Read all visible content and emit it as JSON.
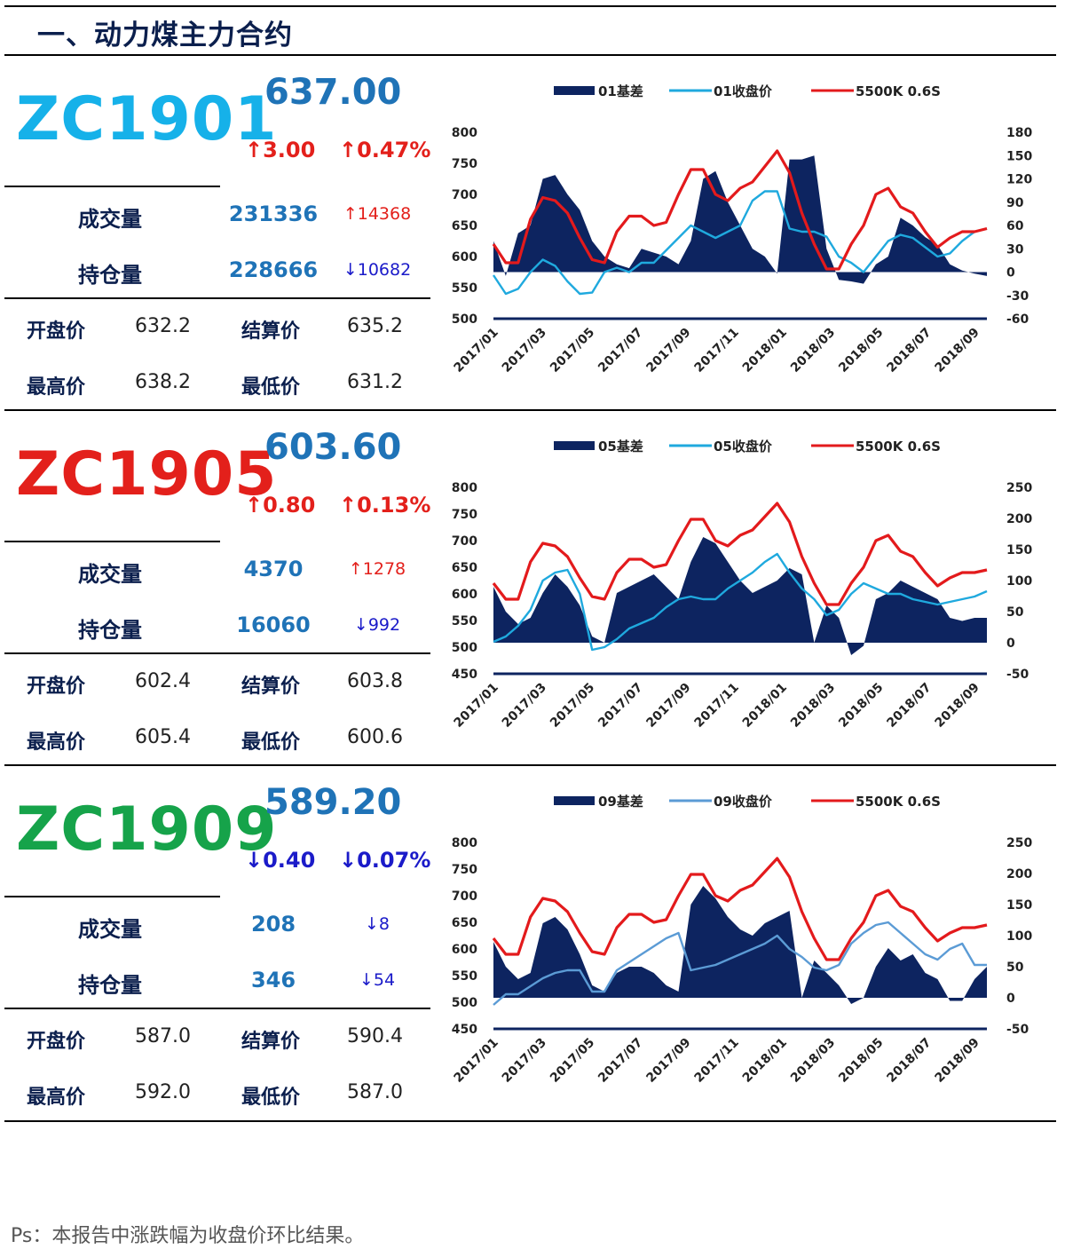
{
  "page": {
    "heading": "一、动力煤主力合约",
    "footnote": "Ps：本报告中涨跌幅为收盘价环比结果。"
  },
  "contracts": [
    {
      "code": "ZC1901",
      "code_color": "#16b1e9",
      "price": "637.00",
      "chg": "↑3.00",
      "pct": "↑0.47%",
      "chg_color": "#e3201b",
      "volume_label": "成交量",
      "volume": "231336",
      "volume_diff": "↑14368",
      "volume_diff_color": "#e3201b",
      "oi_label": "持仓量",
      "oi": "228666",
      "oi_diff": "↓10682",
      "oi_diff_color": "#1b1bc9",
      "open_label": "开盘价",
      "open": "632.2",
      "settle_label": "结算价",
      "settle": "635.2",
      "high_label": "最高价",
      "high": "638.2",
      "low_label": "最低价",
      "low": "631.2"
    },
    {
      "code": "ZC1905",
      "code_color": "#e3201b",
      "price": "603.60",
      "chg": "↑0.80",
      "pct": "↑0.13%",
      "chg_color": "#e3201b",
      "volume_label": "成交量",
      "volume": "4370",
      "volume_diff": "↑1278",
      "volume_diff_color": "#e3201b",
      "oi_label": "持仓量",
      "oi": "16060",
      "oi_diff": "↓992",
      "oi_diff_color": "#1b1bc9",
      "open_label": "开盘价",
      "open": "602.4",
      "settle_label": "结算价",
      "settle": "603.8",
      "high_label": "最高价",
      "high": "605.4",
      "low_label": "最低价",
      "low": "600.6"
    },
    {
      "code": "ZC1909",
      "code_color": "#16a34a",
      "price": "589.20",
      "chg": "↓0.40",
      "pct": "↓0.07%",
      "chg_color": "#1b1bc9",
      "volume_label": "成交量",
      "volume": "208",
      "volume_diff": "↓8",
      "volume_diff_color": "#1b1bc9",
      "oi_label": "持仓量",
      "oi": "346",
      "oi_diff": "↓54",
      "oi_diff_color": "#1b1bc9",
      "open_label": "开盘价",
      "open": "587.0",
      "settle_label": "结算价",
      "settle": "590.4",
      "high_label": "最高价",
      "high": "592.0",
      "low_label": "最低价",
      "low": "587.0"
    }
  ],
  "chart_data": [
    {
      "type": "line",
      "legend": [
        "01基差",
        "01收盘价",
        "5500K 0.6S"
      ],
      "x_ticks": [
        "2017/01",
        "2017/03",
        "2017/05",
        "2017/07",
        "2017/09",
        "2017/11",
        "2018/01",
        "2018/03",
        "2018/05",
        "2018/07",
        "2018/09"
      ],
      "ylim_left": [
        500,
        800
      ],
      "yticks_left": [
        "800",
        "750",
        "700",
        "650",
        "600",
        "550",
        "500"
      ],
      "ylim_right": [
        -60,
        180
      ],
      "yticks_right": [
        "180",
        "150",
        "120",
        "90",
        "60",
        "30",
        "0",
        "-30",
        "-60"
      ],
      "colors": {
        "basis": "#0d2460",
        "close": "#1fa9de",
        "spot": "#e31a1c"
      },
      "series": [
        {
          "name": "01基差",
          "axis": "right",
          "style": "area",
          "values": [
            40,
            -5,
            50,
            60,
            120,
            125,
            100,
            80,
            40,
            20,
            10,
            5,
            30,
            25,
            20,
            10,
            40,
            120,
            130,
            90,
            60,
            30,
            20,
            -2,
            145,
            145,
            150,
            30,
            -10,
            -12,
            -15,
            10,
            20,
            70,
            60,
            45,
            35,
            10,
            2,
            -2,
            -5
          ]
        },
        {
          "name": "01收盘价",
          "axis": "left",
          "style": "line",
          "values": [
            570,
            540,
            548,
            575,
            595,
            585,
            560,
            540,
            542,
            575,
            582,
            575,
            590,
            590,
            610,
            630,
            650,
            640,
            630,
            640,
            650,
            690,
            705,
            705,
            645,
            640,
            640,
            632,
            600,
            590,
            575,
            600,
            625,
            635,
            630,
            615,
            600,
            605,
            625,
            640,
            645
          ]
        },
        {
          "name": "5500K 0.6S",
          "axis": "left",
          "style": "line",
          "values": [
            620,
            590,
            590,
            660,
            695,
            690,
            670,
            630,
            595,
            590,
            640,
            665,
            665,
            650,
            655,
            700,
            740,
            740,
            700,
            690,
            710,
            720,
            745,
            770,
            735,
            670,
            620,
            580,
            580,
            620,
            650,
            700,
            710,
            680,
            670,
            640,
            615,
            630,
            640,
            640,
            645
          ]
        }
      ]
    },
    {
      "type": "line",
      "legend": [
        "05基差",
        "05收盘价",
        "5500K 0.6S"
      ],
      "x_ticks": [
        "2017/01",
        "2017/03",
        "2017/05",
        "2017/07",
        "2017/09",
        "2017/11",
        "2018/01",
        "2018/03",
        "2018/05",
        "2018/07",
        "2018/09"
      ],
      "ylim_left": [
        450,
        800
      ],
      "yticks_left": [
        "800",
        "750",
        "700",
        "650",
        "600",
        "550",
        "500",
        "450"
      ],
      "ylim_right": [
        -50,
        250
      ],
      "yticks_right": [
        "250",
        "200",
        "150",
        "100",
        "50",
        "0",
        "-50"
      ],
      "colors": {
        "basis": "#0d2460",
        "close": "#1fa9de",
        "spot": "#e31a1c"
      },
      "series": [
        {
          "name": "05基差",
          "axis": "right",
          "style": "area",
          "values": [
            90,
            50,
            30,
            40,
            80,
            110,
            90,
            60,
            10,
            0,
            80,
            90,
            100,
            110,
            90,
            70,
            130,
            170,
            160,
            130,
            100,
            80,
            90,
            100,
            120,
            110,
            0,
            60,
            40,
            -20,
            -5,
            70,
            80,
            100,
            90,
            80,
            70,
            40,
            35,
            40,
            40
          ]
        },
        {
          "name": "05收盘价",
          "axis": "left",
          "style": "line",
          "values": [
            510,
            520,
            540,
            570,
            625,
            640,
            645,
            600,
            495,
            500,
            515,
            535,
            545,
            555,
            575,
            590,
            595,
            590,
            590,
            610,
            625,
            640,
            660,
            675,
            640,
            610,
            590,
            560,
            570,
            600,
            620,
            610,
            600,
            600,
            590,
            585,
            580,
            585,
            590,
            595,
            605
          ]
        },
        {
          "name": "5500K 0.6S",
          "axis": "left",
          "style": "line",
          "values": [
            620,
            590,
            590,
            660,
            695,
            690,
            670,
            630,
            595,
            590,
            640,
            665,
            665,
            650,
            655,
            700,
            740,
            740,
            700,
            690,
            710,
            720,
            745,
            770,
            735,
            670,
            620,
            580,
            580,
            620,
            650,
            700,
            710,
            680,
            670,
            640,
            615,
            630,
            640,
            640,
            645
          ]
        }
      ]
    },
    {
      "type": "line",
      "legend": [
        "09基差",
        "09收盘价",
        "5500K 0.6S"
      ],
      "x_ticks": [
        "2017/01",
        "2017/03",
        "2017/05",
        "2017/07",
        "2017/09",
        "2017/11",
        "2018/01",
        "2018/03",
        "2018/05",
        "2018/07",
        "2018/09"
      ],
      "ylim_left": [
        450,
        800
      ],
      "yticks_left": [
        "800",
        "750",
        "700",
        "650",
        "600",
        "550",
        "500",
        "450"
      ],
      "ylim_right": [
        -50,
        250
      ],
      "yticks_right": [
        "250",
        "200",
        "150",
        "100",
        "50",
        "0",
        "-50"
      ],
      "colors": {
        "basis": "#0d2460",
        "close": "#5b9bd5",
        "spot": "#e31a1c"
      },
      "series": [
        {
          "name": "09基差",
          "axis": "right",
          "style": "area",
          "values": [
            90,
            50,
            30,
            40,
            120,
            130,
            110,
            70,
            20,
            10,
            40,
            50,
            50,
            40,
            20,
            10,
            150,
            180,
            160,
            130,
            110,
            100,
            120,
            130,
            140,
            0,
            60,
            40,
            20,
            -10,
            0,
            50,
            80,
            60,
            70,
            40,
            30,
            -5,
            -5,
            30,
            50
          ]
        },
        {
          "name": "09收盘价",
          "axis": "left",
          "style": "line",
          "values": [
            495,
            515,
            515,
            530,
            545,
            555,
            560,
            560,
            520,
            520,
            560,
            575,
            590,
            605,
            620,
            630,
            560,
            565,
            570,
            580,
            590,
            600,
            610,
            625,
            600,
            585,
            565,
            560,
            570,
            610,
            630,
            645,
            650,
            630,
            610,
            590,
            580,
            600,
            610,
            570,
            570
          ]
        },
        {
          "name": "5500K 0.6S",
          "axis": "left",
          "style": "line",
          "values": [
            620,
            590,
            590,
            660,
            695,
            690,
            670,
            630,
            595,
            590,
            640,
            665,
            665,
            650,
            655,
            700,
            740,
            740,
            700,
            690,
            710,
            720,
            745,
            770,
            735,
            670,
            620,
            580,
            580,
            620,
            650,
            700,
            710,
            680,
            670,
            640,
            615,
            630,
            640,
            640,
            645
          ]
        }
      ]
    }
  ]
}
